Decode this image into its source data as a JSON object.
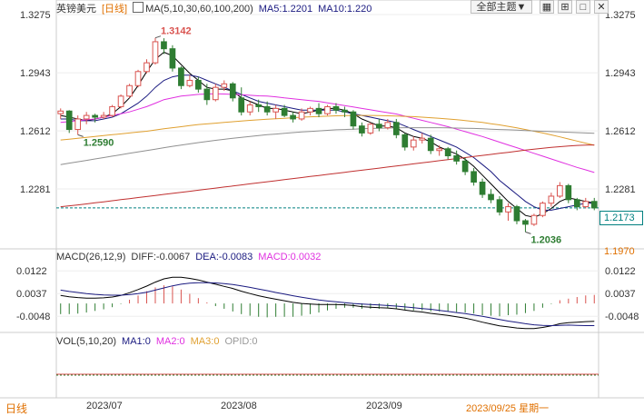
{
  "header": {
    "symbol": "英镑美元",
    "period": "[日线]",
    "ma_label": "MA(5,10,30,60,100,200)",
    "ma5": "MA5:1.2201",
    "ma10": "MA10:1.220",
    "theme_button": "全部主题▼"
  },
  "macd_header": {
    "name": "MACD(26,12,9)",
    "diff": "DIFF:-0.0067",
    "dea": "DEA:-0.0083",
    "macd": "MACD:0.0032"
  },
  "vol_header": {
    "name": "VOL(5,10,20)",
    "ma1": "MA1:0",
    "ma2": "MA2:0",
    "ma3": "MA3:0",
    "opid": "OPID:0"
  },
  "footer": {
    "period_button": "日线",
    "dates": [
      "2023/07",
      "2023/08",
      "2023/09"
    ],
    "current_date": "2023/09/25 星期一"
  },
  "colors": {
    "up": "#d9534f",
    "down": "#2e7d32",
    "ma5": "#000000",
    "ma10": "#1a1a80",
    "ma30": "#e030e0",
    "ma60": "#e0a030",
    "ma100": "#909090",
    "ma200": "#c03030",
    "price_line": "#008080"
  },
  "chart_data": [
    {
      "type": "candlestick",
      "title": "英镑美元 [日线]",
      "y_ticks": [
        "1.3275",
        "1.2943",
        "1.2612",
        "1.2281"
      ],
      "ylim": [
        1.195,
        1.3275
      ],
      "current_price": "1.2173",
      "current_price_value": 1.2173,
      "level_label": "1.1970",
      "annotations": [
        {
          "label": "1.3142",
          "value": 1.3142,
          "kind": "high"
        },
        {
          "label": "1.2590",
          "value": 1.259,
          "kind": "low"
        },
        {
          "label": "1.2036",
          "value": 1.2036,
          "kind": "low"
        }
      ],
      "ohlc": [
        [
          1.271,
          1.274,
          1.268,
          1.2725
        ],
        [
          1.2725,
          1.273,
          1.26,
          1.262
        ],
        [
          1.262,
          1.27,
          1.259,
          1.268
        ],
        [
          1.268,
          1.272,
          1.265,
          1.27
        ],
        [
          1.27,
          1.271,
          1.266,
          1.269
        ],
        [
          1.269,
          1.272,
          1.268,
          1.27
        ],
        [
          1.27,
          1.276,
          1.269,
          1.275
        ],
        [
          1.275,
          1.282,
          1.274,
          1.281
        ],
        [
          1.281,
          1.288,
          1.28,
          1.287
        ],
        [
          1.287,
          1.296,
          1.286,
          1.295
        ],
        [
          1.295,
          1.302,
          1.294,
          1.3
        ],
        [
          1.3,
          1.3142,
          1.299,
          1.312
        ],
        [
          1.312,
          1.314,
          1.305,
          1.308
        ],
        [
          1.308,
          1.31,
          1.295,
          1.297
        ],
        [
          1.297,
          1.298,
          1.285,
          1.287
        ],
        [
          1.287,
          1.293,
          1.286,
          1.29
        ],
        [
          1.29,
          1.292,
          1.283,
          1.285
        ],
        [
          1.285,
          1.288,
          1.276,
          1.279
        ],
        [
          1.279,
          1.288,
          1.278,
          1.286
        ],
        [
          1.286,
          1.29,
          1.284,
          1.288
        ],
        [
          1.288,
          1.289,
          1.278,
          1.28
        ],
        [
          1.28,
          1.286,
          1.27,
          1.272
        ],
        [
          1.272,
          1.278,
          1.27,
          1.276
        ],
        [
          1.276,
          1.279,
          1.272,
          1.275
        ],
        [
          1.275,
          1.278,
          1.27,
          1.272
        ],
        [
          1.272,
          1.276,
          1.268,
          1.274
        ],
        [
          1.274,
          1.276,
          1.269,
          1.27
        ],
        [
          1.27,
          1.272,
          1.266,
          1.268
        ],
        [
          1.268,
          1.274,
          1.267,
          1.272
        ],
        [
          1.272,
          1.275,
          1.27,
          1.274
        ],
        [
          1.274,
          1.277,
          1.269,
          1.271
        ],
        [
          1.271,
          1.276,
          1.27,
          1.275
        ],
        [
          1.275,
          1.277,
          1.271,
          1.273
        ],
        [
          1.273,
          1.275,
          1.269,
          1.272
        ],
        [
          1.272,
          1.273,
          1.262,
          1.264
        ],
        [
          1.264,
          1.266,
          1.258,
          1.26
        ],
        [
          1.26,
          1.266,
          1.259,
          1.265
        ],
        [
          1.265,
          1.268,
          1.261,
          1.263
        ],
        [
          1.263,
          1.268,
          1.262,
          1.266
        ],
        [
          1.266,
          1.268,
          1.257,
          1.259
        ],
        [
          1.259,
          1.26,
          1.25,
          1.252
        ],
        [
          1.252,
          1.258,
          1.25,
          1.256
        ],
        [
          1.256,
          1.26,
          1.254,
          1.257
        ],
        [
          1.257,
          1.259,
          1.248,
          1.25
        ],
        [
          1.25,
          1.253,
          1.247,
          1.251
        ],
        [
          1.251,
          1.252,
          1.245,
          1.247
        ],
        [
          1.247,
          1.25,
          1.242,
          1.244
        ],
        [
          1.244,
          1.246,
          1.236,
          1.238
        ],
        [
          1.238,
          1.24,
          1.23,
          1.232
        ],
        [
          1.232,
          1.234,
          1.223,
          1.225
        ],
        [
          1.225,
          1.228,
          1.22,
          1.222
        ],
        [
          1.222,
          1.224,
          1.213,
          1.215
        ],
        [
          1.215,
          1.22,
          1.21,
          1.218
        ],
        [
          1.218,
          1.219,
          1.208,
          1.21
        ],
        [
          1.21,
          1.211,
          1.2036,
          1.208
        ],
        [
          1.208,
          1.214,
          1.207,
          1.213
        ],
        [
          1.213,
          1.221,
          1.212,
          1.22
        ],
        [
          1.22,
          1.226,
          1.218,
          1.224
        ],
        [
          1.224,
          1.232,
          1.223,
          1.23
        ],
        [
          1.23,
          1.231,
          1.22,
          1.222
        ],
        [
          1.222,
          1.223,
          1.216,
          1.218
        ],
        [
          1.218,
          1.223,
          1.217,
          1.221
        ],
        [
          1.221,
          1.223,
          1.216,
          1.2173
        ]
      ],
      "ma_series": [
        {
          "name": "MA5",
          "color_key": "ma5",
          "values": [
            1.27,
            1.269,
            1.268,
            1.267,
            1.268,
            1.269,
            1.271,
            1.275,
            1.28,
            1.287,
            1.295,
            1.302,
            1.306,
            1.304,
            1.299,
            1.294,
            1.29,
            1.286,
            1.285,
            1.285,
            1.284,
            1.28,
            1.278,
            1.276,
            1.274,
            1.274,
            1.273,
            1.272,
            1.271,
            1.272,
            1.273,
            1.274,
            1.274,
            1.273,
            1.271,
            1.268,
            1.266,
            1.264,
            1.264,
            1.263,
            1.26,
            1.258,
            1.257,
            1.255,
            1.252,
            1.25,
            1.248,
            1.245,
            1.241,
            1.236,
            1.231,
            1.226,
            1.221,
            1.217,
            1.213,
            1.212,
            1.214,
            1.217,
            1.221,
            1.223,
            1.222,
            1.221,
            1.2201
          ]
        },
        {
          "name": "MA10",
          "color_key": "ma10",
          "values": [
            1.268,
            1.268,
            1.267,
            1.267,
            1.267,
            1.268,
            1.269,
            1.271,
            1.274,
            1.277,
            1.281,
            1.286,
            1.29,
            1.292,
            1.293,
            1.293,
            1.292,
            1.29,
            1.288,
            1.286,
            1.284,
            1.282,
            1.28,
            1.278,
            1.277,
            1.276,
            1.275,
            1.274,
            1.273,
            1.273,
            1.273,
            1.273,
            1.273,
            1.272,
            1.271,
            1.27,
            1.269,
            1.268,
            1.267,
            1.266,
            1.264,
            1.262,
            1.26,
            1.258,
            1.256,
            1.254,
            1.252,
            1.249,
            1.246,
            1.242,
            1.238,
            1.233,
            1.229,
            1.225,
            1.221,
            1.218,
            1.216,
            1.216,
            1.217,
            1.218,
            1.219,
            1.22,
            1.22
          ]
        },
        {
          "name": "MA30",
          "color_key": "ma30",
          "values": [
            1.266,
            1.2665,
            1.267,
            1.2675,
            1.268,
            1.269,
            1.27,
            1.271,
            1.272,
            1.2735,
            1.275,
            1.277,
            1.279,
            1.28,
            1.281,
            1.2815,
            1.282,
            1.2822,
            1.2823,
            1.2822,
            1.282,
            1.2818,
            1.2815,
            1.2812,
            1.281,
            1.2806,
            1.28,
            1.2795,
            1.279,
            1.2785,
            1.278,
            1.2772,
            1.2764,
            1.2756,
            1.2748,
            1.274,
            1.2732,
            1.2724,
            1.2716,
            1.2708,
            1.2696,
            1.2684,
            1.2672,
            1.266,
            1.2648,
            1.2636,
            1.2622,
            1.2608,
            1.2594,
            1.258,
            1.2564,
            1.2548,
            1.2532,
            1.2516,
            1.25,
            1.2484,
            1.2468,
            1.2452,
            1.2436,
            1.242,
            1.2404,
            1.239,
            1.2375
          ]
        },
        {
          "name": "MA60",
          "color_key": "ma60",
          "values": [
            1.256,
            1.2565,
            1.257,
            1.2575,
            1.258,
            1.2585,
            1.259,
            1.2595,
            1.26,
            1.2605,
            1.261,
            1.2617,
            1.2624,
            1.263,
            1.2636,
            1.2642,
            1.2648,
            1.2652,
            1.2656,
            1.266,
            1.2664,
            1.2668,
            1.2672,
            1.2675,
            1.2678,
            1.2681,
            1.2684,
            1.2687,
            1.269,
            1.2692,
            1.2694,
            1.2696,
            1.2698,
            1.2699,
            1.27,
            1.27,
            1.27,
            1.2699,
            1.2698,
            1.2697,
            1.2695,
            1.2693,
            1.269,
            1.2687,
            1.2684,
            1.268,
            1.2676,
            1.2671,
            1.2666,
            1.266,
            1.2653,
            1.2646,
            1.2638,
            1.2629,
            1.262,
            1.261,
            1.26,
            1.2589,
            1.2578,
            1.2566,
            1.2554,
            1.2542,
            1.253
          ]
        },
        {
          "name": "MA100",
          "color_key": "ma100",
          "values": [
            1.242,
            1.2428,
            1.2436,
            1.2444,
            1.2452,
            1.246,
            1.2468,
            1.2476,
            1.2484,
            1.2492,
            1.25,
            1.2508,
            1.2516,
            1.2524,
            1.2531,
            1.2538,
            1.2545,
            1.2552,
            1.2558,
            1.2564,
            1.257,
            1.2575,
            1.258,
            1.2585,
            1.259,
            1.2594,
            1.2598,
            1.2602,
            1.2606,
            1.2609,
            1.2612,
            1.2615,
            1.2618,
            1.262,
            1.2622,
            1.2624,
            1.2626,
            1.2627,
            1.2628,
            1.2629,
            1.263,
            1.263,
            1.263,
            1.263,
            1.263,
            1.2629,
            1.2628,
            1.2627,
            1.2626,
            1.2624,
            1.2622,
            1.262,
            1.2618,
            1.2616,
            1.2614,
            1.2612,
            1.261,
            1.2608,
            1.2606,
            1.2604,
            1.2602,
            1.26,
            1.2598
          ]
        },
        {
          "name": "MA200",
          "color_key": "ma200",
          "values": [
            1.218,
            1.2185,
            1.219,
            1.2196,
            1.2202,
            1.2208,
            1.2214,
            1.222,
            1.2226,
            1.2232,
            1.2238,
            1.2244,
            1.225,
            1.2256,
            1.2262,
            1.2268,
            1.2274,
            1.228,
            1.2286,
            1.2292,
            1.2298,
            1.2304,
            1.231,
            1.2316,
            1.2322,
            1.2328,
            1.2334,
            1.234,
            1.2346,
            1.2352,
            1.2358,
            1.2364,
            1.237,
            1.2376,
            1.2382,
            1.2388,
            1.2394,
            1.24,
            1.2406,
            1.2412,
            1.2418,
            1.2424,
            1.243,
            1.2436,
            1.2442,
            1.2448,
            1.2454,
            1.246,
            1.2466,
            1.2472,
            1.2478,
            1.2484,
            1.249,
            1.2496,
            1.2502,
            1.2508,
            1.2513,
            1.2518,
            1.2522,
            1.2526,
            1.2529,
            1.2531,
            1.2532
          ]
        }
      ]
    },
    {
      "type": "macd",
      "title": "MACD(26,12,9)",
      "y_ticks": [
        "0.0122",
        "0.0037",
        "-0.0048"
      ],
      "ylim": [
        -0.0095,
        0.015
      ],
      "diff": [
        0.003,
        0.0025,
        0.0022,
        0.002,
        0.002,
        0.0021,
        0.0024,
        0.003,
        0.004,
        0.0052,
        0.0065,
        0.008,
        0.0092,
        0.0098,
        0.0098,
        0.0094,
        0.0088,
        0.008,
        0.0072,
        0.0064,
        0.0056,
        0.0046,
        0.0037,
        0.0029,
        0.0022,
        0.0016,
        0.001,
        0.0004,
        0.0,
        -0.0002,
        -0.0004,
        -0.0004,
        -0.0004,
        -0.0005,
        -0.0008,
        -0.0012,
        -0.0014,
        -0.0016,
        -0.0017,
        -0.002,
        -0.0025,
        -0.0029,
        -0.0032,
        -0.0037,
        -0.0041,
        -0.0045,
        -0.005,
        -0.0055,
        -0.0062,
        -0.007,
        -0.0077,
        -0.0084,
        -0.0088,
        -0.0092,
        -0.0094,
        -0.0094,
        -0.009,
        -0.0084,
        -0.0076,
        -0.0072,
        -0.007,
        -0.0068,
        -0.0067
      ],
      "dea": [
        0.005,
        0.0045,
        0.0041,
        0.0037,
        0.0034,
        0.0032,
        0.0031,
        0.0031,
        0.0033,
        0.0037,
        0.0042,
        0.005,
        0.0058,
        0.0066,
        0.0072,
        0.0076,
        0.0078,
        0.0078,
        0.0077,
        0.0074,
        0.0071,
        0.0066,
        0.006,
        0.0054,
        0.0048,
        0.0041,
        0.0035,
        0.0029,
        0.0023,
        0.0018,
        0.0013,
        0.0009,
        0.0006,
        0.0003,
        0.0,
        -0.0002,
        -0.0004,
        -0.0006,
        -0.0008,
        -0.001,
        -0.0013,
        -0.0016,
        -0.0019,
        -0.0022,
        -0.0026,
        -0.003,
        -0.0034,
        -0.0038,
        -0.0043,
        -0.0048,
        -0.0054,
        -0.006,
        -0.0066,
        -0.0071,
        -0.0076,
        -0.008,
        -0.0082,
        -0.0083,
        -0.0082,
        -0.0081,
        -0.0082,
        -0.0083,
        -0.0083
      ]
    },
    {
      "type": "volume",
      "title": "VOL(5,10,20)",
      "values": "all zero"
    }
  ]
}
